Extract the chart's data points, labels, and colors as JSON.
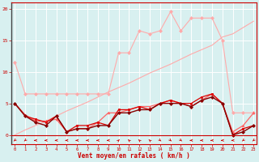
{
  "x": [
    0,
    1,
    2,
    3,
    4,
    5,
    6,
    7,
    8,
    9,
    10,
    11,
    12,
    13,
    14,
    15,
    16,
    17,
    18,
    19,
    20,
    21,
    22,
    23
  ],
  "series": [
    {
      "color": "#ffaaaa",
      "linewidth": 0.8,
      "marker": null,
      "markersize": 0,
      "y": [
        0.0,
        0.8,
        1.5,
        2.2,
        3.0,
        3.8,
        4.5,
        5.2,
        6.0,
        6.8,
        7.5,
        8.2,
        9.0,
        9.8,
        10.5,
        11.2,
        12.0,
        12.8,
        13.5,
        14.2,
        15.5,
        16.0,
        17.0,
        18.0
      ]
    },
    {
      "color": "#ffaaaa",
      "linewidth": 0.8,
      "marker": "D",
      "markersize": 2,
      "y": [
        11.5,
        6.5,
        6.5,
        6.5,
        6.5,
        6.5,
        6.5,
        6.5,
        6.5,
        6.5,
        13.0,
        13.0,
        16.5,
        16.0,
        16.5,
        19.5,
        16.5,
        18.5,
        18.5,
        18.5,
        15.0,
        3.5,
        3.5,
        3.5
      ]
    },
    {
      "color": "#ff6666",
      "linewidth": 0.9,
      "marker": "^",
      "markersize": 2,
      "y": [
        5.0,
        3.2,
        2.2,
        2.2,
        2.5,
        0.5,
        1.0,
        1.0,
        2.0,
        3.5,
        3.5,
        4.0,
        4.5,
        4.5,
        5.0,
        5.5,
        5.0,
        4.5,
        5.5,
        6.5,
        5.0,
        0.5,
        1.5,
        3.5
      ]
    },
    {
      "color": "#dd0000",
      "linewidth": 0.9,
      "marker": "s",
      "markersize": 2,
      "y": [
        5.0,
        3.0,
        2.5,
        2.0,
        3.0,
        0.5,
        1.5,
        1.5,
        2.0,
        1.5,
        4.0,
        4.0,
        4.5,
        4.0,
        5.0,
        5.5,
        5.0,
        5.0,
        6.0,
        6.5,
        5.0,
        0.0,
        1.0,
        1.5
      ]
    },
    {
      "color": "#880000",
      "linewidth": 1.0,
      "marker": "D",
      "markersize": 2,
      "y": [
        5.0,
        3.0,
        2.0,
        1.5,
        3.0,
        0.5,
        1.0,
        1.0,
        1.5,
        1.5,
        3.5,
        3.5,
        4.0,
        4.0,
        5.0,
        5.0,
        5.0,
        4.5,
        5.5,
        6.0,
        5.0,
        0.0,
        0.5,
        1.5
      ]
    }
  ],
  "xlim": [
    -0.3,
    23.3
  ],
  "ylim": [
    -1.5,
    21
  ],
  "yticks": [
    0,
    5,
    10,
    15,
    20
  ],
  "xticks": [
    0,
    1,
    2,
    3,
    4,
    5,
    6,
    7,
    8,
    9,
    10,
    11,
    12,
    13,
    14,
    15,
    16,
    17,
    18,
    19,
    20,
    21,
    22,
    23
  ],
  "xlabel": "Vent moyen/en rafales ( km/h )",
  "background_color": "#d8f0f0",
  "grid_color": "#ffffff",
  "tick_color": "#cc0000",
  "label_color": "#cc0000",
  "axis_color": "#cc0000",
  "arrow_color": "#cc0000"
}
